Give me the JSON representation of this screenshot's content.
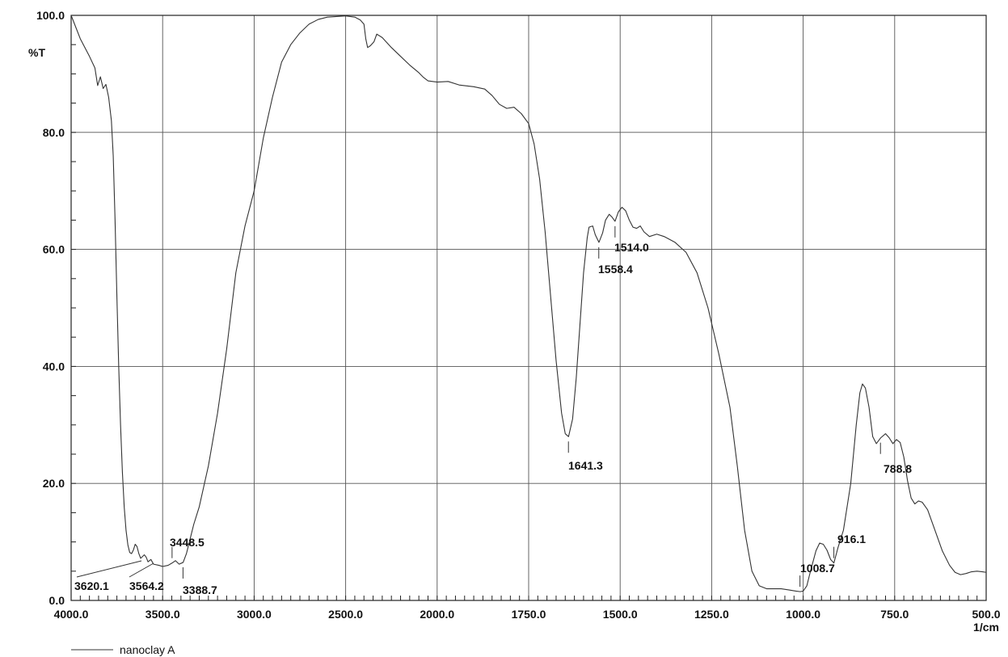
{
  "chart_data": {
    "type": "line",
    "title": "",
    "xlabel": "1/cm",
    "ylabel": "%T",
    "xlim": [
      4000,
      500
    ],
    "ylim": [
      0,
      100
    ],
    "x_reversed": true,
    "grid": true,
    "legend_placement": "bottom-left",
    "x_ticks": [
      "4000.0",
      "3500.0",
      "3000.0",
      "2500.0",
      "2000.0",
      "1750.0",
      "1500.0",
      "1250.0",
      "1000.0",
      "750.0",
      "500.0"
    ],
    "y_ticks": [
      "0.0",
      "20.0",
      "40.0",
      "60.0",
      "80.0",
      "100.0"
    ],
    "series": [
      {
        "name": "nanoclay A",
        "color": "#333333",
        "points": [
          [
            4000,
            100
          ],
          [
            3950,
            96
          ],
          [
            3900,
            93
          ],
          [
            3870,
            91
          ],
          [
            3855,
            88
          ],
          [
            3840,
            89.5
          ],
          [
            3825,
            87.5
          ],
          [
            3810,
            88.2
          ],
          [
            3795,
            86
          ],
          [
            3780,
            82
          ],
          [
            3770,
            76
          ],
          [
            3760,
            65
          ],
          [
            3750,
            52
          ],
          [
            3740,
            40
          ],
          [
            3730,
            30
          ],
          [
            3720,
            22
          ],
          [
            3710,
            16
          ],
          [
            3700,
            12
          ],
          [
            3690,
            9.5
          ],
          [
            3680,
            8.2
          ],
          [
            3670,
            8
          ],
          [
            3660,
            8.6
          ],
          [
            3650,
            9.6
          ],
          [
            3640,
            9.2
          ],
          [
            3630,
            8
          ],
          [
            3620,
            7.2
          ],
          [
            3600,
            7.8
          ],
          [
            3590,
            7.4
          ],
          [
            3580,
            6.6
          ],
          [
            3564,
            7
          ],
          [
            3550,
            6.2
          ],
          [
            3520,
            6
          ],
          [
            3500,
            5.8
          ],
          [
            3470,
            6
          ],
          [
            3448,
            6.4
          ],
          [
            3430,
            6.8
          ],
          [
            3410,
            6.2
          ],
          [
            3388,
            6.5
          ],
          [
            3370,
            8
          ],
          [
            3350,
            10.5
          ],
          [
            3330,
            13
          ],
          [
            3300,
            16
          ],
          [
            3250,
            23
          ],
          [
            3200,
            32
          ],
          [
            3150,
            43
          ],
          [
            3100,
            56
          ],
          [
            3050,
            64
          ],
          [
            3000,
            70
          ],
          [
            2950,
            79
          ],
          [
            2900,
            86
          ],
          [
            2850,
            92
          ],
          [
            2800,
            95
          ],
          [
            2750,
            97
          ],
          [
            2700,
            98.5
          ],
          [
            2650,
            99.3
          ],
          [
            2600,
            99.7
          ],
          [
            2550,
            99.8
          ],
          [
            2500,
            99.9
          ],
          [
            2450,
            99.7
          ],
          [
            2420,
            99.2
          ],
          [
            2400,
            98.5
          ],
          [
            2390,
            96
          ],
          [
            2380,
            94.5
          ],
          [
            2365,
            94.8
          ],
          [
            2345,
            95.5
          ],
          [
            2330,
            96.8
          ],
          [
            2300,
            96.2
          ],
          [
            2250,
            94.5
          ],
          [
            2200,
            93
          ],
          [
            2150,
            91.5
          ],
          [
            2100,
            90.2
          ],
          [
            2075,
            89.4
          ],
          [
            2050,
            88.8
          ],
          [
            2000,
            88.6
          ],
          [
            1970,
            88.7
          ],
          [
            1940,
            88.1
          ],
          [
            1900,
            87.8
          ],
          [
            1870,
            87.4
          ],
          [
            1850,
            86.3
          ],
          [
            1830,
            84.8
          ],
          [
            1810,
            84.1
          ],
          [
            1790,
            84.3
          ],
          [
            1770,
            83.2
          ],
          [
            1750,
            81.5
          ],
          [
            1735,
            78
          ],
          [
            1720,
            72
          ],
          [
            1705,
            63
          ],
          [
            1690,
            52
          ],
          [
            1675,
            41
          ],
          [
            1660,
            32
          ],
          [
            1650,
            28.5
          ],
          [
            1641,
            28
          ],
          [
            1630,
            31
          ],
          [
            1620,
            38
          ],
          [
            1610,
            47
          ],
          [
            1600,
            56
          ],
          [
            1590,
            62
          ],
          [
            1585,
            63.8
          ],
          [
            1575,
            64
          ],
          [
            1568,
            62.5
          ],
          [
            1558,
            61.2
          ],
          [
            1548,
            62.8
          ],
          [
            1540,
            65
          ],
          [
            1530,
            66
          ],
          [
            1522,
            65.5
          ],
          [
            1514,
            64.8
          ],
          [
            1505,
            66.4
          ],
          [
            1495,
            67.2
          ],
          [
            1485,
            66.6
          ],
          [
            1475,
            65
          ],
          [
            1465,
            63.8
          ],
          [
            1455,
            63.6
          ],
          [
            1445,
            64
          ],
          [
            1435,
            63
          ],
          [
            1420,
            62.2
          ],
          [
            1400,
            62.6
          ],
          [
            1380,
            62.2
          ],
          [
            1350,
            61.2
          ],
          [
            1320,
            59.5
          ],
          [
            1290,
            56
          ],
          [
            1260,
            50
          ],
          [
            1230,
            42
          ],
          [
            1200,
            33
          ],
          [
            1180,
            23
          ],
          [
            1160,
            12
          ],
          [
            1140,
            5
          ],
          [
            1120,
            2.5
          ],
          [
            1100,
            2
          ],
          [
            1060,
            2
          ],
          [
            1040,
            1.8
          ],
          [
            1020,
            1.6
          ],
          [
            1008,
            1.5
          ],
          [
            1000,
            1.6
          ],
          [
            990,
            2.5
          ],
          [
            980,
            5
          ],
          [
            965,
            8.5
          ],
          [
            955,
            9.8
          ],
          [
            945,
            9.6
          ],
          [
            935,
            8.6
          ],
          [
            925,
            7
          ],
          [
            916,
            6.4
          ],
          [
            905,
            9
          ],
          [
            890,
            12
          ],
          [
            870,
            20
          ],
          [
            855,
            30
          ],
          [
            845,
            35.5
          ],
          [
            838,
            37
          ],
          [
            830,
            36.3
          ],
          [
            820,
            33
          ],
          [
            810,
            28
          ],
          [
            800,
            26.8
          ],
          [
            788,
            27.8
          ],
          [
            775,
            28.5
          ],
          [
            765,
            27.8
          ],
          [
            755,
            26.8
          ],
          [
            745,
            27.5
          ],
          [
            735,
            27
          ],
          [
            725,
            24.5
          ],
          [
            715,
            20.5
          ],
          [
            705,
            17.5
          ],
          [
            695,
            16.5
          ],
          [
            685,
            17
          ],
          [
            675,
            16.8
          ],
          [
            660,
            15.5
          ],
          [
            640,
            12
          ],
          [
            620,
            8.5
          ],
          [
            600,
            6
          ],
          [
            585,
            4.8
          ],
          [
            570,
            4.4
          ],
          [
            555,
            4.6
          ],
          [
            540,
            4.9
          ],
          [
            525,
            5
          ],
          [
            510,
            4.9
          ],
          [
            500,
            4.8
          ]
        ]
      }
    ],
    "peaks": [
      {
        "label": "3620.1",
        "x": 3620.1,
        "y": 7.2
      },
      {
        "label": "3564.2",
        "x": 3564.2,
        "y": 7.0
      },
      {
        "label": "3448.5",
        "x": 3448.5,
        "y": 6.4
      },
      {
        "label": "3388.7",
        "x": 3388.7,
        "y": 6.5
      },
      {
        "label": "1641.3",
        "x": 1641.3,
        "y": 28.0
      },
      {
        "label": "1558.4",
        "x": 1558.4,
        "y": 61.2
      },
      {
        "label": "1514.0",
        "x": 1514.0,
        "y": 64.8
      },
      {
        "label": "1008.7",
        "x": 1008.7,
        "y": 1.5
      },
      {
        "label": "916.1",
        "x": 916.1,
        "y": 6.4
      },
      {
        "label": "788.8",
        "x": 788.8,
        "y": 27.8
      }
    ]
  }
}
